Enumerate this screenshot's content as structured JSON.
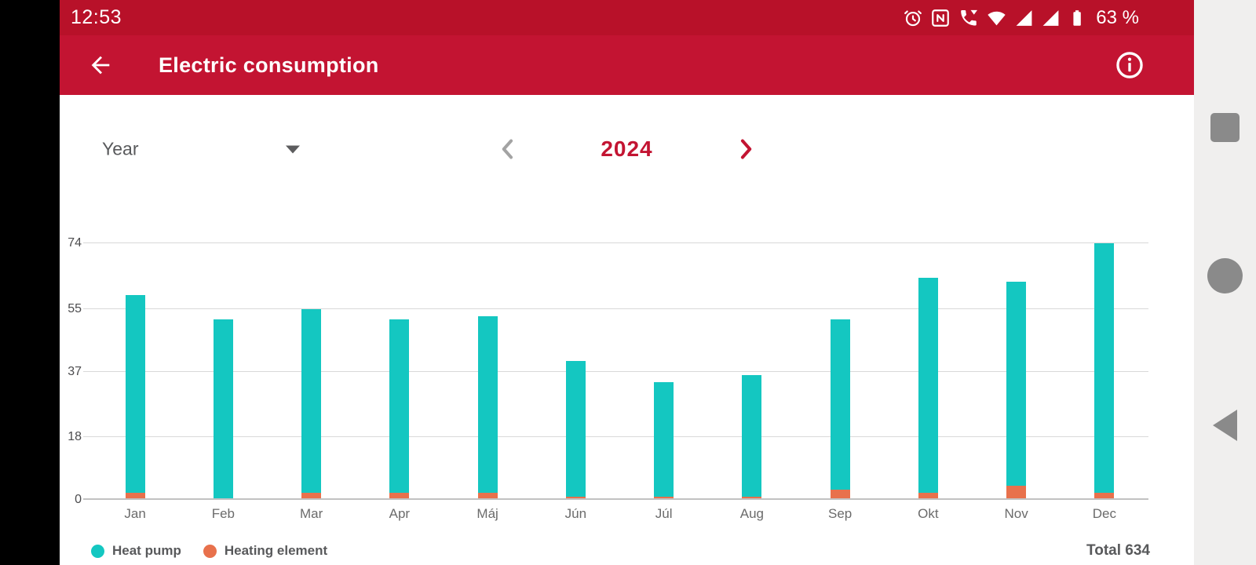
{
  "colors": {
    "status_bar_red": "#b81129",
    "header_red": "#c31432",
    "accent_red": "#c31432",
    "teal": "#14c7c1",
    "orange": "#e8714c",
    "text_dark": "#58595b",
    "text_muted": "#6b6b6b",
    "gridline": "#d9d9d9",
    "axis_line": "#c2c2c2",
    "nav_strip_bg": "#f0efee",
    "nav_button_gray": "#8a8a8a",
    "prev_chevron_gray": "#a3a3a3"
  },
  "status_bar": {
    "time": "12:53",
    "battery_percent": "63 %",
    "icons": [
      "alarm-icon",
      "nfc-icon",
      "wifi-calling-icon",
      "wifi-icon",
      "cell-signal-a-icon",
      "cell-signal-b-icon",
      "battery-icon"
    ]
  },
  "header": {
    "title": "Electric consumption",
    "back_icon": "back-arrow-icon",
    "info_icon": "info-icon"
  },
  "controls": {
    "period_select_value": "Year",
    "year": "2024",
    "prev_icon": "chevron-left-icon",
    "next_icon": "chevron-right-icon"
  },
  "chart_data": {
    "type": "bar",
    "stacked": true,
    "categories": [
      "Jan",
      "Feb",
      "Mar",
      "Apr",
      "Máj",
      "Jún",
      "Júl",
      "Aug",
      "Sep",
      "Okt",
      "Nov",
      "Dec"
    ],
    "series": [
      {
        "name": "Heat pump",
        "color": "#14c7c1",
        "values": [
          57,
          52,
          53,
          50,
          51,
          39,
          33,
          35,
          49,
          62,
          59,
          72
        ]
      },
      {
        "name": "Heating element",
        "color": "#e8714c",
        "values": [
          2,
          0,
          2,
          2,
          2,
          1,
          1,
          1,
          3,
          2,
          4,
          2
        ]
      }
    ],
    "stack_order_bottom_to_top": [
      "Heating element",
      "Heat pump"
    ],
    "stack_totals": [
      59,
      52,
      55,
      52,
      53,
      40,
      34,
      36,
      52,
      64,
      63,
      74
    ],
    "total": 634,
    "yticks": [
      0,
      18,
      37,
      55,
      74
    ],
    "ylim": [
      0,
      74
    ],
    "grid": "horizontal",
    "legend_position": "bottom-left"
  },
  "legend": {
    "items": [
      {
        "label": "Heat pump",
        "color": "#14c7c1"
      },
      {
        "label": "Heating element",
        "color": "#e8714c"
      }
    ]
  },
  "footer": {
    "total_label": "Total",
    "total_value": "634"
  },
  "nav_bar": {
    "buttons": [
      "recents-button",
      "home-button",
      "back-button"
    ]
  }
}
